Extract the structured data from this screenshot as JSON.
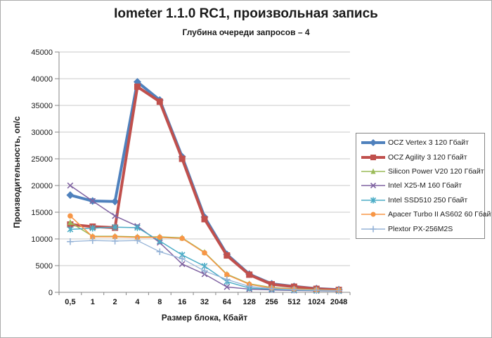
{
  "title": "Iometer 1.1.0 RC1, произвольная запись",
  "subtitle": "Глубина очереди запросов – 4",
  "colors": {
    "gridline": "#c9c9c9",
    "axis": "#868686",
    "text": "#1a1a1a",
    "plot_bg": "#ffffff",
    "legend_border": "#848484"
  },
  "chart_data": {
    "type": "line",
    "title": "Iometer 1.1.0 RC1, произвольная запись",
    "subtitle": "Глубина очереди запросов – 4",
    "xlabel": "Размер блока, Кбайт",
    "ylabel": "Производительность,  оп/с",
    "ylim": [
      0,
      45000
    ],
    "ytick_step": 5000,
    "yticks": [
      0,
      5000,
      10000,
      15000,
      20000,
      25000,
      30000,
      35000,
      40000,
      45000
    ],
    "grid": "horizontal-only",
    "legend_position": "right",
    "categories": [
      "0,5",
      "1",
      "2",
      "4",
      "8",
      "16",
      "32",
      "64",
      "128",
      "256",
      "512",
      "1024",
      "2048"
    ],
    "series": [
      {
        "name": "OCZ Vertex 3 120 Гбайт",
        "color": "#4f81bd",
        "marker": "diamond",
        "line_width": 4,
        "values": [
          18200,
          17100,
          17000,
          39400,
          36000,
          25400,
          14100,
          7100,
          3400,
          1600,
          1100,
          700,
          500
        ]
      },
      {
        "name": "OCZ Agility 3  120 Гбайт",
        "color": "#c0504d",
        "marker": "square",
        "line_width": 4,
        "values": [
          12700,
          12300,
          12100,
          38500,
          35700,
          25000,
          13700,
          6900,
          3300,
          1500,
          1050,
          650,
          450
        ]
      },
      {
        "name": "Silicon Power V20 120 Гбайт",
        "color": "#9bbb59",
        "marker": "triangle",
        "line_width": 1.5,
        "values": [
          13100,
          10500,
          10500,
          10400,
          10400,
          10200,
          7500,
          3400,
          1600,
          900,
          650,
          500,
          400
        ]
      },
      {
        "name": "Intel X25-M 160 Гбайт",
        "color": "#8064a2",
        "marker": "x",
        "line_width": 1.5,
        "values": [
          20000,
          17100,
          14300,
          12400,
          9300,
          5300,
          3400,
          1000,
          600,
          450,
          350,
          300,
          250
        ]
      },
      {
        "name": "Intel SSD510 250 Гбайт",
        "color": "#4bacc6",
        "marker": "star",
        "line_width": 1.5,
        "values": [
          11800,
          12000,
          12200,
          12100,
          9600,
          7000,
          4900,
          2000,
          800,
          600,
          450,
          350,
          300
        ]
      },
      {
        "name": "Apacer Turbo II AS602 60 Гбайт",
        "color": "#f79646",
        "marker": "circle",
        "line_width": 1.5,
        "values": [
          14300,
          10400,
          10400,
          10300,
          10300,
          10100,
          7400,
          3300,
          1500,
          800,
          600,
          450,
          400
        ]
      },
      {
        "name": "Plextor PX-256M2S",
        "color": "#95b3d7",
        "marker": "plus",
        "line_width": 1.25,
        "values": [
          9500,
          9700,
          9600,
          9700,
          7600,
          6300,
          4000,
          2400,
          1100,
          700,
          500,
          400,
          300
        ]
      }
    ]
  }
}
